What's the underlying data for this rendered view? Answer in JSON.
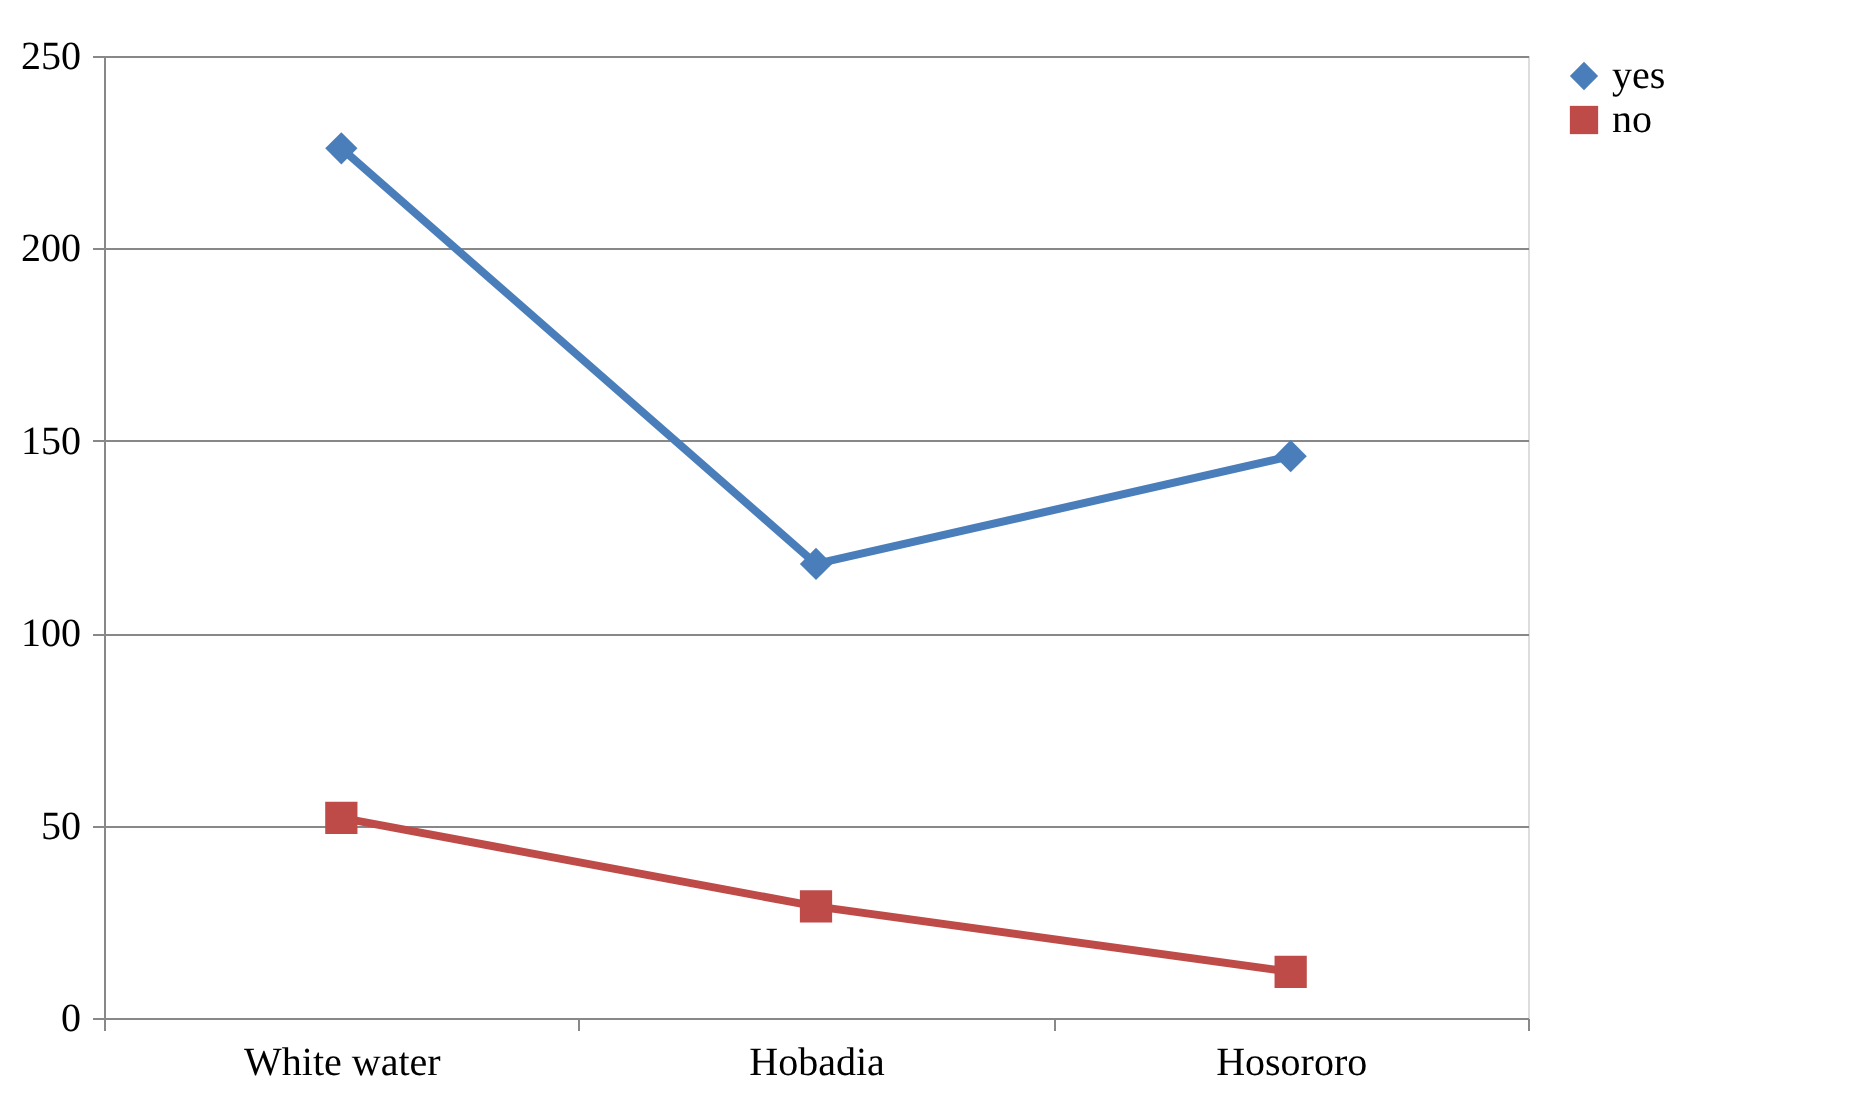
{
  "chart_data": {
    "type": "line",
    "categories": [
      "White water",
      "Hobadia",
      "Hosororo"
    ],
    "series": [
      {
        "name": "yes",
        "color": "#4a7ebb",
        "marker": "diamond",
        "values": [
          226,
          118,
          146
        ]
      },
      {
        "name": "no",
        "color": "#be4b48",
        "marker": "square",
        "values": [
          52,
          29,
          12
        ]
      }
    ],
    "ylim": [
      0,
      250
    ],
    "yticks": [
      0,
      50,
      100,
      150,
      200,
      250
    ],
    "grid": "y",
    "legend": "right",
    "line_style": "solid"
  }
}
